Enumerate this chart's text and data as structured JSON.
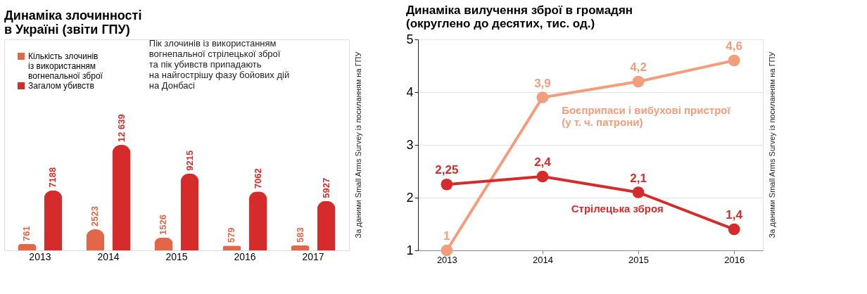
{
  "chart_data": [
    {
      "type": "bar",
      "title": "Динаміка злочинності\nв Україні (звіти ГПУ)",
      "categories": [
        "2013",
        "2014",
        "2015",
        "2016",
        "2017"
      ],
      "series": [
        {
          "name": "Кількість злочинів\nіз використанням\nвогнепальної зброї",
          "color": "#e2664a",
          "values": [
            761,
            2523,
            1526,
            579,
            583
          ],
          "value_labels": [
            "761",
            "2523",
            "1526",
            "579",
            "583"
          ]
        },
        {
          "name": "Загалом убивств",
          "color": "#d52b2b",
          "values": [
            7188,
            12639,
            9215,
            7062,
            5927
          ],
          "value_labels": [
            "7188",
            "12 639",
            "9215",
            "7062",
            "5927"
          ]
        }
      ],
      "legend": "top left",
      "annotations": [
        "Пік злочинів із використанням\nвогнепальної стрілецької зброї\nта пік убивств припадають\nна найгострішу фазу бойових дій\nна Донбасі",
        "За даними  Small Arms Survey із посиланням на ГПУ"
      ]
    },
    {
      "type": "line",
      "title": "Динаміка вилучення зброї в громадян\n(округлено до десятих, тис. од.)",
      "categories": [
        "2013",
        "2014",
        "2015",
        "2016"
      ],
      "series": [
        {
          "name": "Боєприпаси і вибухові пристрої\n(у т. ч. патрони)",
          "color": "#f29e7c",
          "values": [
            1,
            3.9,
            4.2,
            4.6
          ],
          "value_labels": [
            "1",
            "3,9",
            "4,2",
            "4,6"
          ]
        },
        {
          "name": "Стрілецька зброя",
          "color": "#d52b2b",
          "values": [
            2.25,
            2.4,
            2.1,
            1.4
          ],
          "value_labels": [
            "2,25",
            "2,4",
            "2,1",
            "1,4"
          ]
        }
      ],
      "ylim": [
        1,
        5
      ],
      "yticks": [
        1,
        2,
        3,
        4,
        5
      ],
      "grid": "y",
      "marker": "circle",
      "legend": false,
      "annotations": [
        "За даними  Small Arms Survey із посиланням на ГПУ"
      ]
    }
  ]
}
